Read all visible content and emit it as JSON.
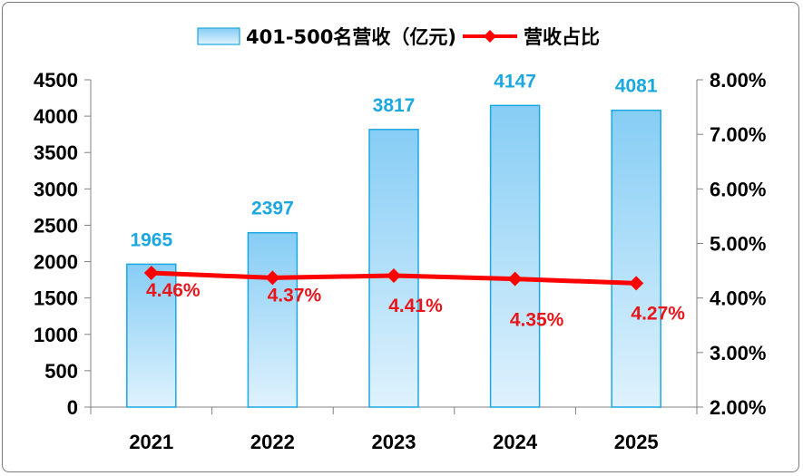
{
  "chart_data": {
    "type": "bar",
    "categories": [
      "2021",
      "2022",
      "2023",
      "2024",
      "2025"
    ],
    "series": [
      {
        "name": "401-500名营收（亿元)",
        "type": "bar",
        "axis": "left",
        "values": [
          1965,
          2397,
          3817,
          4147,
          4081
        ],
        "labels": [
          "1965",
          "2397",
          "3817",
          "4147",
          "4081"
        ],
        "color": "#8fd3f7"
      },
      {
        "name": "营收占比",
        "type": "line",
        "axis": "right",
        "values": [
          4.46,
          4.37,
          4.41,
          4.35,
          4.27
        ],
        "labels": [
          "4.46%",
          "4.37%",
          "4.41%",
          "4.35%",
          "4.27%"
        ],
        "color": "#ff0000"
      }
    ],
    "y_left": {
      "range": [
        0,
        4500
      ],
      "ticks": [
        "0",
        "500",
        "1000",
        "1500",
        "2000",
        "2500",
        "3000",
        "3500",
        "4000",
        "4500"
      ]
    },
    "y_right": {
      "range": [
        2.0,
        8.0
      ],
      "ticks": [
        "2.00%",
        "3.00%",
        "4.00%",
        "5.00%",
        "6.00%",
        "7.00%",
        "8.00%"
      ]
    },
    "grid": false,
    "legend_position": "top-center",
    "colors": {
      "bar_top": "#86cdf5",
      "bar_bottom": "#dff2fd",
      "bar_border": "#1ba8e0",
      "line": "#ff0000",
      "bar_label": "#1ba8e0",
      "line_label": "#e8161b"
    }
  }
}
